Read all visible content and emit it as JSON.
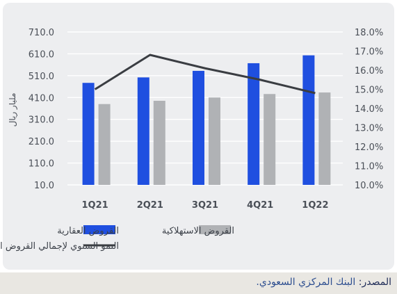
{
  "chart_data": {
    "type": "bar",
    "categories": [
      "1Q21",
      "2Q21",
      "3Q21",
      "4Q21",
      "1Q22"
    ],
    "series": [
      {
        "name": "القروض العقارية",
        "kind": "bar",
        "axis": "left",
        "color": "#1f4fe0",
        "values": [
          477,
          502,
          532,
          567,
          603
        ]
      },
      {
        "name": "القروض الاستهلاكية",
        "kind": "bar",
        "axis": "left",
        "color": "#b0b2b5",
        "values": [
          380,
          395,
          410,
          426,
          433
        ]
      },
      {
        "name": "النمو السنوي لإجمالي القروض المصرفية (المحور الأيمن)",
        "kind": "line",
        "axis": "right",
        "color": "#3a3d42",
        "values": [
          15.0,
          16.8,
          16.1,
          15.5,
          14.8
        ]
      }
    ],
    "y_left": {
      "label": "مليار ريال",
      "ylim": [
        10,
        710
      ],
      "ticks": [
        "710.0",
        "610.0",
        "510.0",
        "410.0",
        "310.0",
        "210.0",
        "110.0",
        "10.0"
      ]
    },
    "y_right": {
      "ylim": [
        10,
        18
      ],
      "ticks": [
        "18.0%",
        "17.0%",
        "16.0%",
        "15.0%",
        "14.0%",
        "13.0%",
        "12.0%",
        "11.0%",
        "10.0%"
      ]
    },
    "grid": true,
    "legend_position": "bottom"
  },
  "source": {
    "label": "المصدر:",
    "value": "البنك المركزي السعودي."
  }
}
